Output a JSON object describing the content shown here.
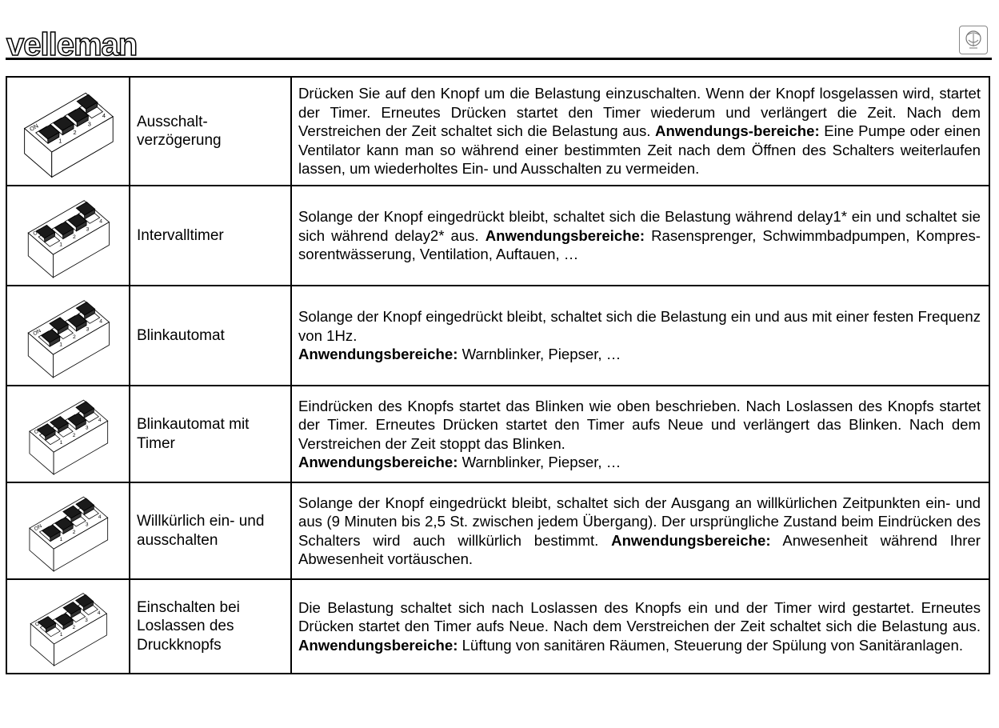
{
  "header": {
    "logo": "velleman",
    "seal": "seal-logo"
  },
  "rows": [
    {
      "switches": [
        0,
        0,
        0,
        1
      ],
      "name": "Ausschalt-\nverzögerung",
      "parts": [
        {
          "t": "Drücken Sie auf den Knopf um die Belastung einzuschalten. Wenn der Knopf losgelassen wird, startet der Timer. Erneutes Drücken startet den Timer wiederum und verlängert die Zeit. Nach dem Verstreichen der Zeit schaltet sich die Belastung aus. "
        },
        {
          "b": "Anwendungs-bereiche:"
        },
        {
          "t": "  Eine Pumpe oder einen Ventilator kann man so während einer bestimmten Zeit nach dem Öffnen des Schalters weiterlaufen lassen, um wiederholtes Ein- und Ausschalten zu vermeiden."
        }
      ]
    },
    {
      "switches": [
        1,
        0,
        0,
        1
      ],
      "name": "Intervalltimer",
      "parts": [
        {
          "t": "Solange der Knopf eingedrückt bleibt, schaltet sich die Belastung während delay1* ein und schaltet sie sich während delay2* aus. "
        },
        {
          "b": "Anwendungsbereiche:"
        },
        {
          "t": " Rasensprenger, Schwimmbadpumpen, Kompres-sorentwässerung, Ventilation, Auftauen, …"
        }
      ]
    },
    {
      "switches": [
        0,
        1,
        0,
        1
      ],
      "name": "Blinkautomat",
      "parts": [
        {
          "t": "Solange der Knopf eingedrückt bleibt, schaltet sich die Belastung ein und aus mit einer festen Frequenz von 1Hz."
        },
        {
          "br": true
        },
        {
          "b": "Anwendungsbereiche:"
        },
        {
          "t": "  Warnblinker, Piepser, …"
        }
      ]
    },
    {
      "switches": [
        1,
        1,
        0,
        1
      ],
      "name": "Blinkautomat mit\nTimer",
      "parts": [
        {
          "t": "Eindrücken des Knopfs startet das Blinken wie oben beschrieben.  Nach Loslassen des Knopfs startet der Timer. Erneutes Drücken startet den Timer aufs Neue und verlängert das Blinken.  Nach dem Verstreichen der Zeit stoppt das Blinken."
        },
        {
          "br": true
        },
        {
          "b": "Anwendungsbereiche:"
        },
        {
          "t": " Warnblinker, Piepser, …"
        }
      ]
    },
    {
      "switches": [
        0,
        0,
        1,
        1
      ],
      "name": "Willkürlich ein- und\nausschalten",
      "parts": [
        {
          "t": "Solange der Knopf eingedrückt bleibt, schaltet sich der Ausgang an willkürlichen Zeitpunkten ein- und aus (9 Minuten bis 2,5 St. zwischen jedem Übergang).  Der ursprüngliche Zustand beim Eindrücken des Schalters wird auch willkürlich bestimmt. "
        },
        {
          "b": "Anwendungsbereiche:"
        },
        {
          "t": "  Anwesenheit während Ihrer Abwesenheit vortäuschen."
        }
      ]
    },
    {
      "switches": [
        1,
        0,
        1,
        1
      ],
      "name": "Einschalten bei\nLoslassen des\nDruckknopfs",
      "parts": [
        {
          "t": "Die Belastung schaltet sich nach Loslassen des Knopfs ein und der Timer wird gestartet. Erneutes Drücken startet den Timer aufs Neue.  Nach dem Verstreichen der Zeit schaltet sich die Belastung aus. "
        },
        {
          "b": "Anwendungsbereiche:"
        },
        {
          "t": "  Lüftung von sanitären Räumen, Steuerung der Spülung von Sanitäranlagen."
        }
      ]
    }
  ],
  "dip": {
    "on_label": "ON",
    "numbers": [
      "1",
      "2",
      "3",
      "4"
    ]
  }
}
